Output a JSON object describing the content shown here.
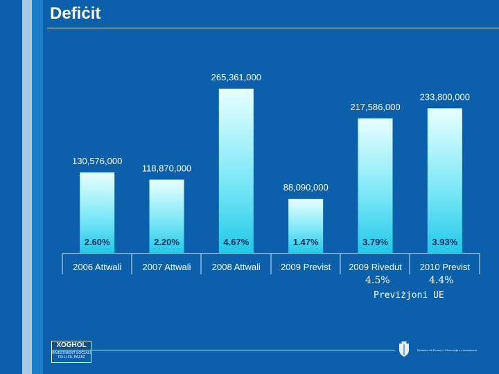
{
  "slide": {
    "title": "Defiċit",
    "ue_note": {
      "values": [
        "4.5%",
        "4.4%"
      ],
      "label": "Previżjoni UE"
    },
    "footer": {
      "logo_main": "XOGHOL",
      "logo_sub": "INVESTIMENT SOĊJALI FIX U FIL-PAJJIŻ",
      "ministry_text": "Ministeru tal-Finanzi, l-Ekonomija u l-Investiment"
    }
  },
  "colors": {
    "background": "#0b5fab",
    "bar_top": "#e8ffff",
    "bar_bottom": "#22c8e8"
  },
  "chart_data": {
    "type": "bar",
    "title": "Defiċit",
    "categories": [
      "2006 Attwali",
      "2007 Attwali",
      "2008 Attwali",
      "2009 Previst",
      "2009 Rivedut",
      "2010 Previst"
    ],
    "values": [
      130576000,
      118870000,
      265361000,
      88090000,
      217586000,
      233800000
    ],
    "value_labels": [
      "130,576,000",
      "118,870,000",
      "265,361,000",
      "88,090,000",
      "217,586,000",
      "233,800,000"
    ],
    "percent_labels": [
      "2.60%",
      "2.20%",
      "4.67%",
      "1.47%",
      "3.79%",
      "3.93%"
    ],
    "ylim": [
      0,
      290000000
    ],
    "xlabel": "",
    "ylabel": ""
  }
}
